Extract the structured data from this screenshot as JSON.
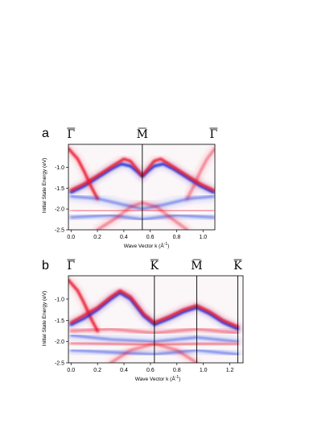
{
  "chart_data": [
    {
      "type": "heatmap",
      "panel_label": "a",
      "xlabel": "Wave Vector k (Å",
      "xlabel_sup": "-1",
      "xlabel_end": ")",
      "ylabel": "Initial State Energy (eV)",
      "xlim": [
        -0.02,
        1.09
      ],
      "ylim": [
        -2.5,
        -0.45
      ],
      "xticks": [
        0.0,
        0.2,
        0.4,
        0.6,
        0.8,
        1.0
      ],
      "xtick_labels": [
        "0.0",
        "0.2",
        "0.4",
        "0.6",
        "0.8",
        "1.0"
      ],
      "yticks": [
        -1.0,
        -1.5,
        -2.0,
        -2.5
      ],
      "ytick_labels": [
        "-1.0",
        "-1.5",
        "-2.0",
        "-2.5"
      ],
      "symmetry_points": [
        {
          "k": 0.0,
          "symbol": "Γ",
          "line": false
        },
        {
          "k": 0.54,
          "symbol": "M",
          "line": true
        },
        {
          "k": 1.08,
          "symbol": "Γ",
          "line": false
        }
      ],
      "bands": [
        {
          "color": "blue",
          "points": [
            [
              0.0,
              -1.6
            ],
            [
              0.1,
              -1.45
            ],
            [
              0.2,
              -1.25
            ],
            [
              0.3,
              -1.05
            ],
            [
              0.38,
              -0.92
            ],
            [
              0.45,
              -0.97
            ],
            [
              0.5,
              -1.1
            ],
            [
              0.54,
              -1.22
            ],
            [
              0.58,
              -1.1
            ],
            [
              0.63,
              -0.97
            ],
            [
              0.7,
              -0.92
            ],
            [
              0.78,
              -1.05
            ],
            [
              0.88,
              -1.25
            ],
            [
              0.98,
              -1.45
            ],
            [
              1.08,
              -1.6
            ]
          ]
        },
        {
          "color": "red",
          "points": [
            [
              0.0,
              -1.55
            ],
            [
              0.1,
              -1.4
            ],
            [
              0.2,
              -1.2
            ],
            [
              0.3,
              -1.0
            ],
            [
              0.4,
              -0.8
            ],
            [
              0.45,
              -0.85
            ],
            [
              0.5,
              -1.05
            ],
            [
              0.54,
              -1.2
            ],
            [
              0.58,
              -1.05
            ],
            [
              0.63,
              -0.85
            ],
            [
              0.68,
              -0.8
            ],
            [
              0.78,
              -1.0
            ],
            [
              0.88,
              -1.2
            ],
            [
              0.98,
              -1.4
            ],
            [
              1.08,
              -1.55
            ]
          ]
        },
        {
          "color": "red",
          "points": [
            [
              -0.02,
              -0.55
            ],
            [
              0.05,
              -0.8
            ],
            [
              0.1,
              -1.1
            ],
            [
              0.15,
              -1.45
            ],
            [
              0.2,
              -1.75
            ]
          ]
        },
        {
          "color": "red",
          "points": [
            [
              0.88,
              -1.75
            ],
            [
              0.93,
              -1.45
            ],
            [
              0.98,
              -1.1
            ],
            [
              1.03,
              -0.8
            ],
            [
              1.09,
              -0.55
            ]
          ]
        },
        {
          "color": "blue",
          "points": [
            [
              0.0,
              -1.7
            ],
            [
              0.2,
              -1.75
            ],
            [
              0.4,
              -1.9
            ],
            [
              0.54,
              -2.0
            ],
            [
              0.7,
              -1.9
            ],
            [
              0.9,
              -1.75
            ],
            [
              1.08,
              -1.7
            ]
          ]
        },
        {
          "color": "red",
          "points": [
            [
              0.0,
              -2.03
            ],
            [
              0.2,
              -2.05
            ],
            [
              0.54,
              -2.05
            ],
            [
              0.88,
              -2.05
            ],
            [
              1.08,
              -2.03
            ]
          ]
        },
        {
          "color": "blue",
          "points": [
            [
              0.0,
              -2.2
            ],
            [
              0.3,
              -2.15
            ],
            [
              0.54,
              -2.25
            ],
            [
              0.8,
              -2.15
            ],
            [
              1.08,
              -2.2
            ]
          ]
        },
        {
          "color": "red",
          "points": [
            [
              0.2,
              -2.5
            ],
            [
              0.35,
              -2.2
            ],
            [
              0.45,
              -1.95
            ],
            [
              0.54,
              -1.85
            ],
            [
              0.65,
              -1.95
            ],
            [
              0.75,
              -2.2
            ],
            [
              0.88,
              -2.5
            ]
          ]
        }
      ]
    },
    {
      "type": "heatmap",
      "panel_label": "b",
      "xlabel": "Wave Vector k (Å",
      "xlabel_sup": "-1",
      "xlabel_end": ")",
      "ylabel": "Initial State Energy (eV)",
      "xlim": [
        -0.02,
        1.3
      ],
      "ylim": [
        -2.5,
        -0.45
      ],
      "xticks": [
        0.0,
        0.2,
        0.4,
        0.6,
        0.8,
        1.0,
        1.2
      ],
      "xtick_labels": [
        "0.0",
        "0.2",
        "0.4",
        "0.6",
        "0.8",
        "1.0",
        "1.2"
      ],
      "yticks": [
        -1.0,
        -1.5,
        -2.0,
        -2.5
      ],
      "ytick_labels": [
        "-1.0",
        "-1.5",
        "-2.0",
        "-2.5"
      ],
      "symmetry_points": [
        {
          "k": 0.0,
          "symbol": "Γ",
          "line": false
        },
        {
          "k": 0.63,
          "symbol": "K",
          "line": true
        },
        {
          "k": 0.95,
          "symbol": "M",
          "line": true
        },
        {
          "k": 1.26,
          "symbol": "K",
          "line": true
        }
      ],
      "bands": [
        {
          "color": "red",
          "points": [
            [
              -0.02,
              -0.55
            ],
            [
              0.05,
              -0.8
            ],
            [
              0.1,
              -1.1
            ],
            [
              0.15,
              -1.45
            ],
            [
              0.2,
              -1.75
            ]
          ]
        },
        {
          "color": "blue",
          "points": [
            [
              0.0,
              -1.6
            ],
            [
              0.1,
              -1.45
            ],
            [
              0.2,
              -1.25
            ],
            [
              0.3,
              -1.0
            ],
            [
              0.37,
              -0.85
            ],
            [
              0.45,
              -1.0
            ],
            [
              0.55,
              -1.4
            ],
            [
              0.63,
              -1.6
            ],
            [
              0.75,
              -1.45
            ],
            [
              0.85,
              -1.3
            ],
            [
              0.95,
              -1.2
            ],
            [
              1.05,
              -1.35
            ],
            [
              1.15,
              -1.55
            ],
            [
              1.26,
              -1.7
            ]
          ]
        },
        {
          "color": "red",
          "points": [
            [
              0.0,
              -1.55
            ],
            [
              0.1,
              -1.38
            ],
            [
              0.2,
              -1.2
            ],
            [
              0.3,
              -0.95
            ],
            [
              0.37,
              -0.8
            ],
            [
              0.45,
              -0.95
            ],
            [
              0.55,
              -1.35
            ],
            [
              0.63,
              -1.55
            ],
            [
              0.75,
              -1.4
            ],
            [
              0.85,
              -1.25
            ],
            [
              0.95,
              -1.15
            ],
            [
              1.05,
              -1.3
            ],
            [
              1.15,
              -1.5
            ],
            [
              1.26,
              -1.65
            ]
          ]
        },
        {
          "color": "red",
          "points": [
            [
              0.0,
              -1.75
            ],
            [
              0.3,
              -1.7
            ],
            [
              0.63,
              -1.8
            ],
            [
              0.95,
              -1.7
            ],
            [
              1.26,
              -1.8
            ]
          ]
        },
        {
          "color": "blue",
          "points": [
            [
              0.0,
              -1.85
            ],
            [
              0.3,
              -1.95
            ],
            [
              0.63,
              -2.0
            ],
            [
              0.95,
              -1.9
            ],
            [
              1.26,
              -2.0
            ]
          ]
        },
        {
          "color": "red",
          "points": [
            [
              0.0,
              -2.03
            ],
            [
              0.3,
              -2.05
            ],
            [
              0.63,
              -2.08
            ],
            [
              0.95,
              -2.05
            ],
            [
              1.26,
              -2.05
            ]
          ]
        },
        {
          "color": "blue",
          "points": [
            [
              0.0,
              -2.2
            ],
            [
              0.3,
              -2.25
            ],
            [
              0.63,
              -2.3
            ],
            [
              0.95,
              -2.2
            ],
            [
              1.26,
              -2.3
            ]
          ]
        },
        {
          "color": "red",
          "points": [
            [
              0.3,
              -2.5
            ],
            [
              0.45,
              -2.2
            ],
            [
              0.63,
              -2.05
            ],
            [
              0.8,
              -2.2
            ],
            [
              0.95,
              -2.5
            ]
          ]
        }
      ]
    }
  ],
  "colors": {
    "red": "#e8192c",
    "blue": "#1e2ee0",
    "frame": "#000000"
  }
}
